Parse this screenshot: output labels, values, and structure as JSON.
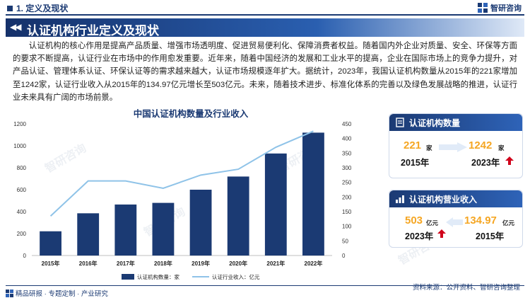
{
  "header": {
    "section_label": "1. 定义及现状",
    "logo_text": "智研咨询"
  },
  "banner": {
    "arrows": "◀◀",
    "title": "认证机构行业定义及现状"
  },
  "paragraph": "认证机构的核心作用是提高产品质量、增强市场透明度、促进贸易便利化、保障消费者权益。随着国内外企业对质量、安全、环保等方面的要求不断提高，认证行业在市场中的作用愈发重要。近年来，随着中国经济的发展和工业水平的提高，企业在国际市场上的竞争力提升，对产品认证、管理体系认证、环保认证等的需求越来越大，认证市场规模逐年扩大。据统计，2023年，我国认证机构数量从2015年的221家增加至1242家，认证行业收入从2015年的134.97亿元增长至503亿元。未来，随着技术进步、标准化体系的完善以及绿色发展战略的推进，认证行业未来具有广阔的市场前景。",
  "chart_data": {
    "type": "bar",
    "title": "中国认证机构数量及行业收入",
    "categories": [
      "2015年",
      "2016年",
      "2017年",
      "2018年",
      "2019年",
      "2020年",
      "2021年",
      "2022年"
    ],
    "series": [
      {
        "name": "认证机构数量：家",
        "type": "bar",
        "axis": "left",
        "color": "#1b3a73",
        "values": [
          221,
          385,
          465,
          480,
          600,
          720,
          930,
          1120
        ]
      },
      {
        "name": "认证行业收入：亿元",
        "type": "line",
        "axis": "right",
        "color": "#8fc3e8",
        "values": [
          134.97,
          255,
          255,
          230,
          275,
          295,
          370,
          425
        ]
      }
    ],
    "y_left": {
      "min": 0,
      "max": 1200,
      "ticks": [
        0,
        200,
        400,
        600,
        800,
        1000,
        1200
      ]
    },
    "y_right": {
      "min": 0,
      "max": 450,
      "ticks": [
        0,
        50,
        100,
        150,
        200,
        250,
        300,
        350,
        400,
        450
      ]
    },
    "grid": false,
    "legend_position": "bottom"
  },
  "card_count": {
    "title": "认证机构数量",
    "from_value": "221",
    "from_unit": "家",
    "from_year": "2015年",
    "to_value": "1242",
    "to_unit": "家",
    "to_year": "2023年"
  },
  "card_revenue": {
    "title": "认证机构营业收入",
    "from_value": "503",
    "from_unit": "亿元",
    "from_year": "2023年",
    "to_value": "134.97",
    "to_unit": "亿元",
    "to_year": "2015年"
  },
  "footer": {
    "left": "精品研报 · 专题定制 · 产业研究",
    "right": "资料来源：公开资料、智研咨询整理"
  },
  "colors": {
    "primary": "#1b3a73",
    "accent": "#f5a623",
    "line": "#8fc3e8",
    "up_arrow": "#d0021b"
  }
}
